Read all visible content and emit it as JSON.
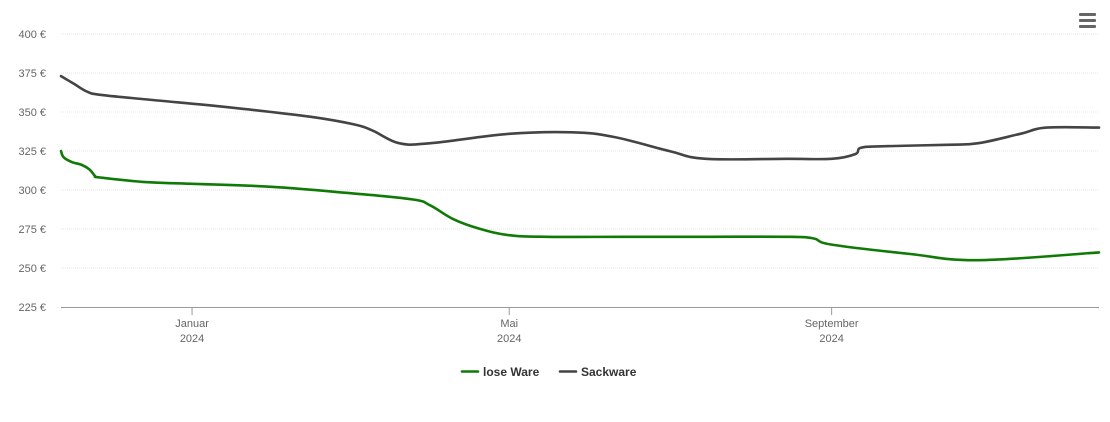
{
  "menu": {
    "icon": "hamburger-menu-icon"
  },
  "chart_data": {
    "type": "line",
    "title": "",
    "xlabel": "",
    "ylabel": "",
    "ylim": [
      225,
      400
    ],
    "xlim": [
      "2023-11-12",
      "2024-12-12"
    ],
    "y_ticks": [
      225,
      250,
      275,
      300,
      325,
      350,
      375,
      400
    ],
    "y_tick_labels": [
      "225 €",
      "250 €",
      "275 €",
      "300 €",
      "325 €",
      "350 €",
      "375 €",
      "400 €"
    ],
    "x_ticks": [
      {
        "date": "2024-01-01",
        "label_month": "Januar",
        "label_year": "2024"
      },
      {
        "date": "2024-05-01",
        "label_month": "Mai",
        "label_year": "2024"
      },
      {
        "date": "2024-09-01",
        "label_month": "September",
        "label_year": "2024"
      }
    ],
    "grid": true,
    "legend_position": "bottom-center",
    "series": [
      {
        "name": "lose Ware",
        "color": "#107a07",
        "points": [
          [
            "2023-11-12",
            325
          ],
          [
            "2023-11-13",
            321
          ],
          [
            "2023-11-16",
            318
          ],
          [
            "2023-11-20",
            316
          ],
          [
            "2023-11-23",
            313
          ],
          [
            "2023-11-25",
            309
          ],
          [
            "2023-11-27",
            308
          ],
          [
            "2023-12-15",
            305
          ],
          [
            "2024-01-01",
            304
          ],
          [
            "2024-02-01",
            302
          ],
          [
            "2024-03-01",
            298
          ],
          [
            "2024-03-25",
            294
          ],
          [
            "2024-04-01",
            290
          ],
          [
            "2024-04-10",
            281
          ],
          [
            "2024-04-20",
            275
          ],
          [
            "2024-05-01",
            271
          ],
          [
            "2024-05-15",
            270
          ],
          [
            "2024-06-15",
            270
          ],
          [
            "2024-07-15",
            270
          ],
          [
            "2024-08-15",
            270
          ],
          [
            "2024-08-25",
            269
          ],
          [
            "2024-09-01",
            265
          ],
          [
            "2024-10-01",
            259
          ],
          [
            "2024-10-27",
            255
          ],
          [
            "2024-12-12",
            260
          ]
        ]
      },
      {
        "name": "Sackware",
        "color": "#444444",
        "points": [
          [
            "2023-11-12",
            373
          ],
          [
            "2023-11-17",
            368
          ],
          [
            "2023-11-22",
            363
          ],
          [
            "2023-11-27",
            361
          ],
          [
            "2023-12-15",
            358
          ],
          [
            "2024-01-15",
            353
          ],
          [
            "2024-02-15",
            347
          ],
          [
            "2024-03-03",
            342
          ],
          [
            "2024-03-10",
            338
          ],
          [
            "2024-03-20",
            330
          ],
          [
            "2024-04-01",
            330
          ],
          [
            "2024-05-01",
            336
          ],
          [
            "2024-05-25",
            337
          ],
          [
            "2024-06-10",
            334
          ],
          [
            "2024-07-01",
            325
          ],
          [
            "2024-07-15",
            320
          ],
          [
            "2024-08-15",
            320
          ],
          [
            "2024-09-01",
            320
          ],
          [
            "2024-09-10",
            323
          ],
          [
            "2024-09-12",
            327
          ],
          [
            "2024-09-20",
            328
          ],
          [
            "2024-10-15",
            329
          ],
          [
            "2024-10-27",
            330
          ],
          [
            "2024-11-12",
            336
          ],
          [
            "2024-11-22",
            340
          ],
          [
            "2024-12-12",
            340
          ]
        ]
      }
    ]
  }
}
